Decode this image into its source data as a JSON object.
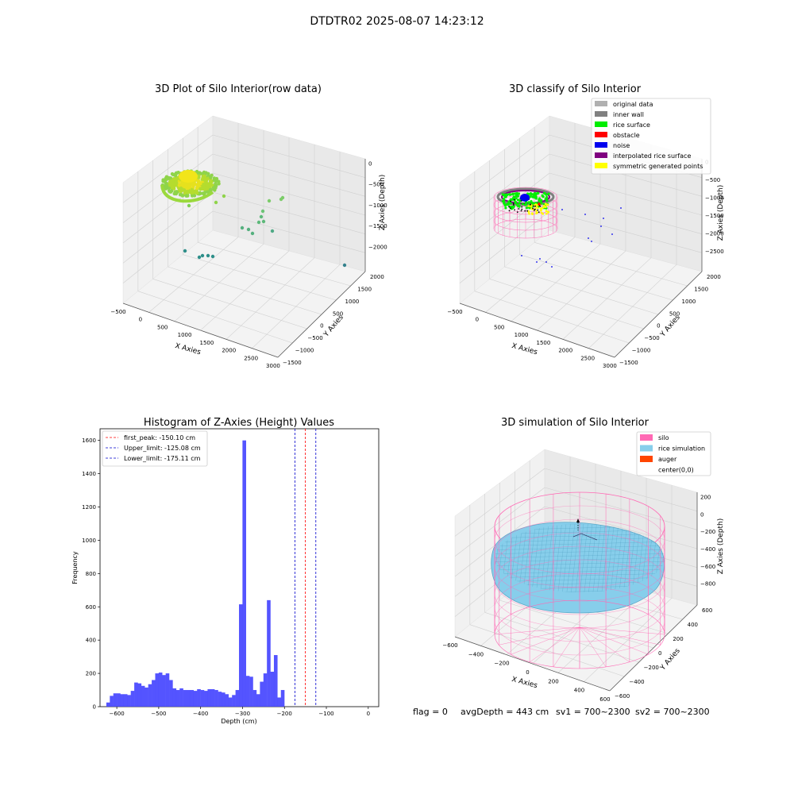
{
  "suptitle": "DTDTR02 2025-08-07 14:23:12",
  "status_line": {
    "flag": "flag = 0",
    "avg_depth": "avgDepth = 443 cm",
    "sv1": "sv1 = 700~2300",
    "sv2": "sv2 = 700~2300"
  },
  "colors": {
    "original_data": "#b0b0b0",
    "inner_wall": "#808080",
    "rice_surface": "#00ee00",
    "obstacle": "#ff0000",
    "noise": "#0000ee",
    "interpolated_rice_surface": "#800080",
    "symmetric_generated_points": "#ffff00",
    "silo": "#ff69b4",
    "rice_simulation": "#87ceeb",
    "auger": "#ff4500",
    "hist_bar": "#4b4bff",
    "first_peak_line": "#ff0000",
    "limit_line": "#0000cc"
  },
  "chart_data": [
    {
      "type": "scatter3d",
      "title": "3D Plot of Silo Interior(row data)",
      "xlabel": "X Axies",
      "ylabel": "Y Axies",
      "zlabel": "Z Axies (Depth)",
      "x_ticks": [
        "−500",
        "0",
        "500",
        "1000",
        "1500",
        "2000",
        "2500",
        "3000"
      ],
      "y_ticks": [
        "−1500",
        "−1000",
        "−500",
        "0",
        "500",
        "1000",
        "1500",
        "2000"
      ],
      "z_ticks": [
        "0",
        "−500",
        "−1000",
        "−1500",
        "−2000"
      ],
      "grid": true
    },
    {
      "type": "scatter3d",
      "title": "3D classify of Silo Interior",
      "xlabel": "X Axies",
      "ylabel": "Y Axies",
      "zlabel": "Z Axies (Depth)",
      "x_ticks": [
        "−500",
        "0",
        "500",
        "1000",
        "1500",
        "2000",
        "2500",
        "3000"
      ],
      "y_ticks": [
        "−1500",
        "−1000",
        "−500",
        "0",
        "500",
        "1000",
        "1500",
        "2000"
      ],
      "z_ticks": [
        "0",
        "−500",
        "−1000",
        "−1500",
        "−2000",
        "−2500"
      ],
      "legend_position": "top-right",
      "legend": [
        {
          "label": "original data",
          "color_key": "original_data"
        },
        {
          "label": "inner wall",
          "color_key": "inner_wall"
        },
        {
          "label": "rice surface",
          "color_key": "rice_surface"
        },
        {
          "label": "obstacle",
          "color_key": "obstacle"
        },
        {
          "label": "noise",
          "color_key": "noise"
        },
        {
          "label": "interpolated rice surface",
          "color_key": "interpolated_rice_surface"
        },
        {
          "label": "symmetric generated points",
          "color_key": "symmetric_generated_points"
        }
      ],
      "grid": true
    },
    {
      "type": "bar",
      "title": "Histogram of Z-Axies (Height) Values",
      "xlabel": "Depth (cm)",
      "ylabel": "Frequency",
      "xlim": [
        -640,
        25
      ],
      "ylim": [
        0,
        1670
      ],
      "x_ticks": [
        -600,
        -500,
        -400,
        -300,
        -200,
        -100,
        0
      ],
      "y_ticks": [
        0,
        200,
        400,
        600,
        800,
        1000,
        1200,
        1400,
        1600
      ],
      "bin_start": -625,
      "bin_width": 8.33,
      "values": [
        25,
        65,
        80,
        80,
        75,
        75,
        70,
        95,
        145,
        140,
        125,
        115,
        135,
        160,
        200,
        205,
        190,
        200,
        160,
        110,
        100,
        110,
        100,
        100,
        100,
        95,
        105,
        100,
        95,
        105,
        105,
        100,
        90,
        85,
        75,
        55,
        70,
        100,
        615,
        1600,
        185,
        180,
        100,
        75,
        150,
        200,
        640,
        210,
        310,
        55,
        100
      ],
      "vlines": [
        {
          "label": "first_peak: -150.10 cm",
          "x": -150.1,
          "color_key": "first_peak_line"
        },
        {
          "label": "Upper_limit: -125.08 cm",
          "x": -125.08,
          "color_key": "limit_line"
        },
        {
          "label": "Lower_limit: -175.11 cm",
          "x": -175.11,
          "color_key": "limit_line"
        }
      ],
      "legend_position": "top-left",
      "grid": false
    },
    {
      "type": "surface3d",
      "title": "3D simulation of Silo Interior",
      "xlabel": "X Axies",
      "ylabel": "Y Axies",
      "zlabel": "Z Axies (Depth)",
      "x_ticks": [
        "−600",
        "−400",
        "−200",
        "0",
        "200",
        "400",
        "600"
      ],
      "y_ticks": [
        "−600",
        "−400",
        "−200",
        "0",
        "200",
        "400",
        "600"
      ],
      "z_ticks": [
        "200",
        "0",
        "−200",
        "−400",
        "−600",
        "−800"
      ],
      "legend_position": "top-right",
      "legend": [
        {
          "label": "silo",
          "color_key": "silo"
        },
        {
          "label": "rice simulation",
          "color_key": "rice_simulation"
        },
        {
          "label": "auger",
          "color_key": "auger"
        },
        {
          "label": "center(0,0)",
          "color_key": ""
        }
      ],
      "grid": true
    }
  ]
}
